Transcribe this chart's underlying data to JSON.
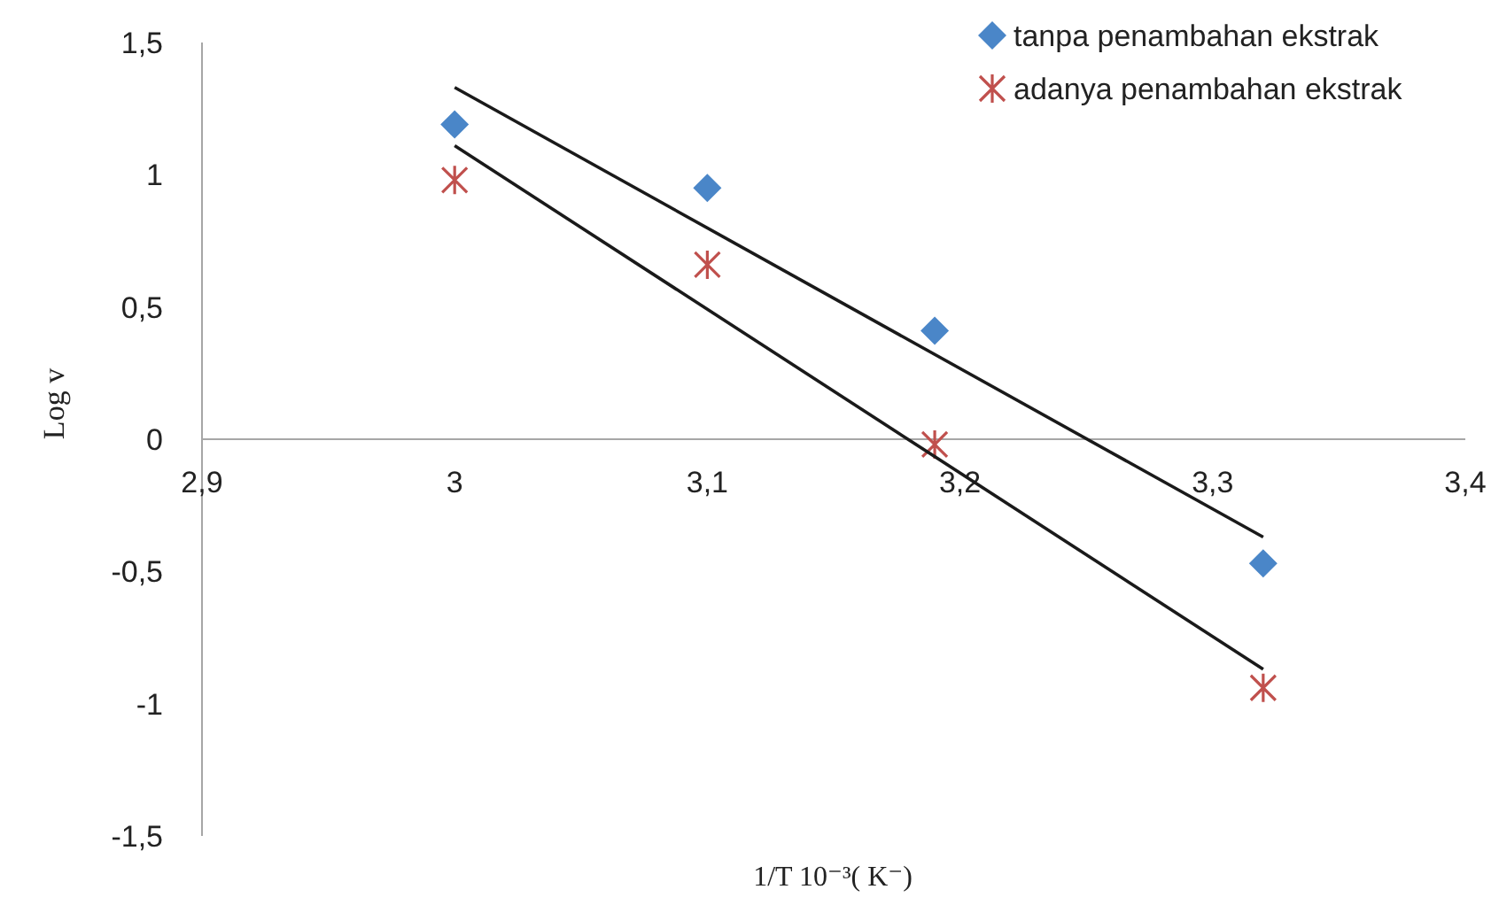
{
  "chart_data": {
    "type": "scatter",
    "xlabel": "1/T 10⁻³( K⁻)",
    "ylabel": "Log v",
    "xlim": [
      2.9,
      3.4
    ],
    "ylim": [
      -1.5,
      1.5
    ],
    "xticks": [
      {
        "value": 2.9,
        "label": "2,9"
      },
      3,
      {
        "value": 3.1,
        "label": "3,1"
      },
      {
        "value": 3.2,
        "label": "3,2"
      },
      {
        "value": 3.3,
        "label": "3,3"
      },
      {
        "value": 3.4,
        "label": "3,4"
      }
    ],
    "yticks": [
      {
        "value": -1.5,
        "label": "-1,5"
      },
      -1,
      {
        "value": -0.5,
        "label": "-0,5"
      },
      0,
      {
        "value": 0.5,
        "label": "0,5"
      },
      1,
      {
        "value": 1.5,
        "label": "1,5"
      }
    ],
    "grid": false,
    "legend": "top right",
    "series": [
      {
        "name": "tanpa penambahan ekstrak",
        "color": "#4a86c8",
        "marker": "diamond",
        "x": [
          3.0,
          3.1,
          3.19,
          3.32
        ],
        "values": [
          1.19,
          0.95,
          0.41,
          -0.47
        ]
      },
      {
        "name": "adanya penambahan ekstrak",
        "color": "#c0504d",
        "marker": "cross",
        "x": [
          3.0,
          3.1,
          3.19,
          3.32
        ],
        "values": [
          0.98,
          0.66,
          -0.02,
          -0.94
        ]
      },
      {
        "type": "line",
        "color": "#1a1a1a",
        "marker": "none",
        "x": [
          3.0,
          3.32
        ],
        "values": [
          1.33,
          -0.37
        ]
      },
      {
        "type": "line",
        "color": "#1a1a1a",
        "marker": "none",
        "x": [
          3.0,
          3.32
        ],
        "values": [
          1.11,
          -0.87
        ]
      }
    ]
  }
}
